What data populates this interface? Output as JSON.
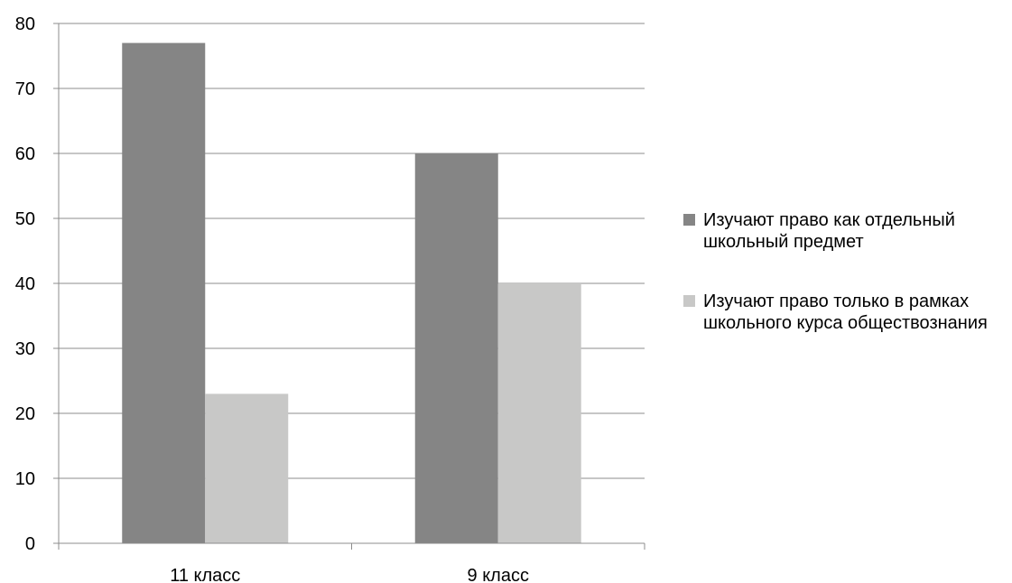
{
  "chart_data": {
    "type": "bar",
    "categories": [
      "11 класс",
      "9 класс"
    ],
    "series": [
      {
        "name": "Изучают право как отдельный школьный предмет",
        "values": [
          77,
          60
        ],
        "color": "#858585"
      },
      {
        "name": "Изучают право только в рамках школьного курса обществознания",
        "values": [
          23,
          40
        ],
        "color": "#c8c8c7"
      }
    ],
    "ylim": [
      0,
      80
    ],
    "yticks": [
      0,
      10,
      20,
      30,
      40,
      50,
      60,
      70,
      80
    ],
    "grid": true,
    "legend_position": "right",
    "gridline_color": "#8c8c8c"
  }
}
